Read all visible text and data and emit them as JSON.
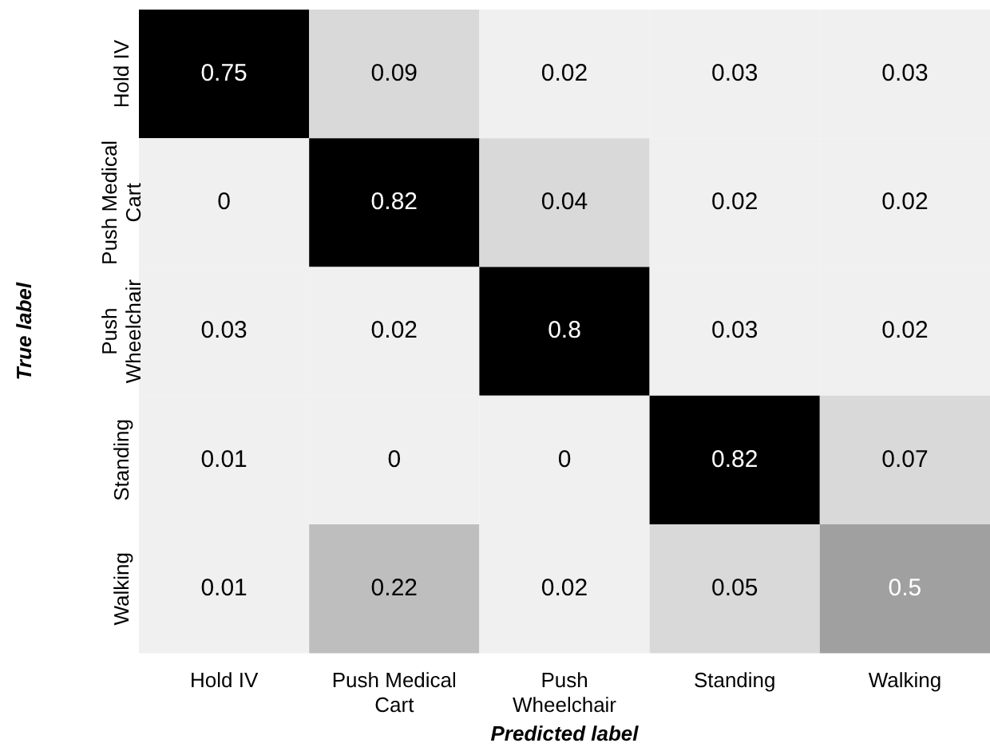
{
  "chart_data": {
    "type": "heatmap",
    "xlabel": "Predicted label",
    "ylabel": "True label",
    "categories": [
      "Hold IV",
      "Push Medical Cart",
      "Push Wheelchair",
      "Standing",
      "Walking"
    ],
    "y_categories": [
      "Hold IV",
      "Push Medical Cart",
      "Push Wheelchair",
      "Standing",
      "Walking"
    ],
    "cells": [
      [
        0.75,
        0.09,
        0.02,
        0.03,
        0.03
      ],
      [
        0,
        0.82,
        0.04,
        0.02,
        0.02
      ],
      [
        0.03,
        0.02,
        0.8,
        0.03,
        0.02
      ],
      [
        0.01,
        0,
        0,
        0.82,
        0.07
      ],
      [
        0.01,
        0.22,
        0.02,
        0.05,
        0.5
      ]
    ],
    "data_labels": true
  }
}
